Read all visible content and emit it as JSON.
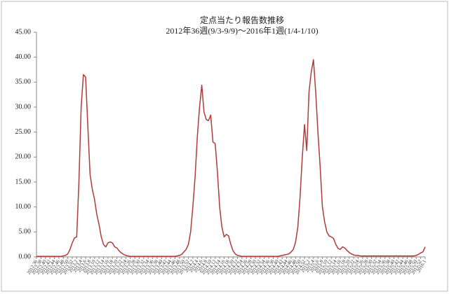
{
  "chart_data": {
    "type": "line",
    "title": "定点当たり報告数推移",
    "subtitle": "2012年36週(9/3-9/9)～2016年1週(1/4-1/10)",
    "color": "#b23a3a",
    "ylim": [
      0,
      45
    ],
    "yticks": [
      {
        "value": 0,
        "label": "0.00"
      },
      {
        "value": 5,
        "label": "5.00"
      },
      {
        "value": 10,
        "label": "10.00"
      },
      {
        "value": 15,
        "label": "15.00"
      },
      {
        "value": 20,
        "label": "20.00"
      },
      {
        "value": 25,
        "label": "25.00"
      },
      {
        "value": 30,
        "label": "30.00"
      },
      {
        "value": 35,
        "label": "35.00"
      },
      {
        "value": 40,
        "label": "40.00"
      },
      {
        "value": 45,
        "label": "45.00"
      }
    ],
    "categories": [
      "2012.36",
      null,
      "2012.38",
      null,
      "2012.40",
      null,
      "2012.42",
      null,
      "2012.44",
      null,
      "2012.46",
      null,
      "2012.48",
      null,
      "2012.50",
      null,
      "2012.52",
      null,
      "2013.2",
      null,
      "2013.4",
      null,
      "2013.6",
      null,
      "2013.8",
      null,
      "2013.10",
      null,
      "2013.12",
      null,
      "2013.14",
      null,
      "2013.16",
      null,
      "2013.18",
      null,
      "2013.20",
      null,
      "2013.22",
      null,
      "2013.24",
      null,
      "2013.26",
      null,
      "2013.28",
      null,
      "2013.30",
      null,
      "2013.32",
      null,
      "2013.34",
      null,
      "2013.36",
      null,
      "2013.38",
      null,
      "2013.40",
      null,
      "2013.42",
      null,
      "2013.44",
      null,
      "2013.46",
      null,
      "2013.48",
      null,
      "2013.50",
      null,
      "2013.52",
      null,
      "2014.2",
      null,
      "2014.4",
      null,
      "2014.6",
      null,
      "2014.8",
      null,
      "2014.10",
      null,
      "2014.12",
      null,
      "2014.14",
      null,
      "2014.16",
      null,
      "2014.18",
      null,
      "2014.20",
      null,
      "2014.22",
      null,
      "2014.24",
      null,
      "2014.26",
      null,
      "2014.28",
      null,
      "2014.30",
      null,
      "2014.32",
      null,
      "2014.34",
      null,
      "2014.36",
      null,
      "2014.38",
      null,
      "2014.40",
      null,
      "2014.42",
      null,
      "2014.44",
      null,
      "2014.46",
      null,
      "2014.48",
      null,
      "2014.50",
      null,
      "2014.52",
      null,
      "2015.2",
      null,
      "2015.4",
      null,
      "2015.6",
      null,
      "2015.8",
      null,
      "2015.10",
      null,
      "2015.12",
      null,
      "2015.14",
      null,
      "2015.16",
      null,
      "2015.18",
      null,
      "2015.20",
      null,
      "2015.22",
      null,
      "2015.24",
      null,
      "2015.26",
      null,
      "2015.28",
      null,
      "2015.30",
      null,
      "2015.32",
      null,
      "2015.34",
      null,
      "2015.36",
      null,
      "2015.38",
      null,
      "2015.40",
      null,
      "2015.42",
      null,
      "2015.44",
      null,
      "2015.46",
      null,
      "2015.48",
      null,
      "2015.50",
      null,
      "2015.52",
      null,
      "2016.1"
    ],
    "values": [
      0.1,
      0.1,
      0.1,
      0.1,
      0.1,
      0.1,
      0.1,
      0.1,
      0.1,
      0.1,
      0.1,
      0.1,
      0.2,
      0.3,
      0.6,
      1.5,
      2.8,
      3.8,
      4.0,
      15,
      30,
      36.5,
      36.0,
      26,
      16.5,
      13.5,
      11.5,
      8.5,
      6.5,
      4.0,
      2.5,
      2.0,
      2.8,
      3.0,
      2.8,
      2.0,
      1.8,
      1.2,
      0.8,
      0.5,
      0.3,
      0.2,
      0.1,
      0.1,
      0.1,
      0.1,
      0.1,
      0.1,
      0.1,
      0.1,
      0.1,
      0.1,
      0.1,
      0.1,
      0.1,
      0.1,
      0.1,
      0.1,
      0.1,
      0.1,
      0.1,
      0.1,
      0.1,
      0.2,
      0.3,
      0.5,
      1.0,
      1.5,
      2.5,
      5,
      10,
      16,
      24,
      30,
      34.4,
      29,
      27.5,
      27.3,
      28.4,
      23,
      22.7,
      17,
      10,
      6,
      4.0,
      4.5,
      4.2,
      2.5,
      1.2,
      0.6,
      0.3,
      0.2,
      0.1,
      0.1,
      0.1,
      0.1,
      0.1,
      0.1,
      0.1,
      0.1,
      0.1,
      0.1,
      0.1,
      0.1,
      0.1,
      0.1,
      0.1,
      0.1,
      0.1,
      0.2,
      0.3,
      0.4,
      0.5,
      0.6,
      1.0,
      1.5,
      3,
      6,
      12,
      20,
      26.5,
      21.3,
      33,
      37,
      39.5,
      33,
      25,
      18,
      10,
      7,
      5,
      4.2,
      4.0,
      3.7,
      2.5,
      1.7,
      1.5,
      2.0,
      1.8,
      1.3,
      0.9,
      0.6,
      0.4,
      0.3,
      0.3,
      0.2,
      0.2,
      0.2,
      0.2,
      0.2,
      0.2,
      0.2,
      0.2,
      0.2,
      0.2,
      0.2,
      0.2,
      0.2,
      0.2,
      0.2,
      0.2,
      0.2,
      0.2,
      0.2,
      0.2,
      0.2,
      0.2,
      0.2,
      0.2,
      0.2,
      0.3,
      0.5,
      0.8,
      1.0,
      2.0
    ]
  }
}
